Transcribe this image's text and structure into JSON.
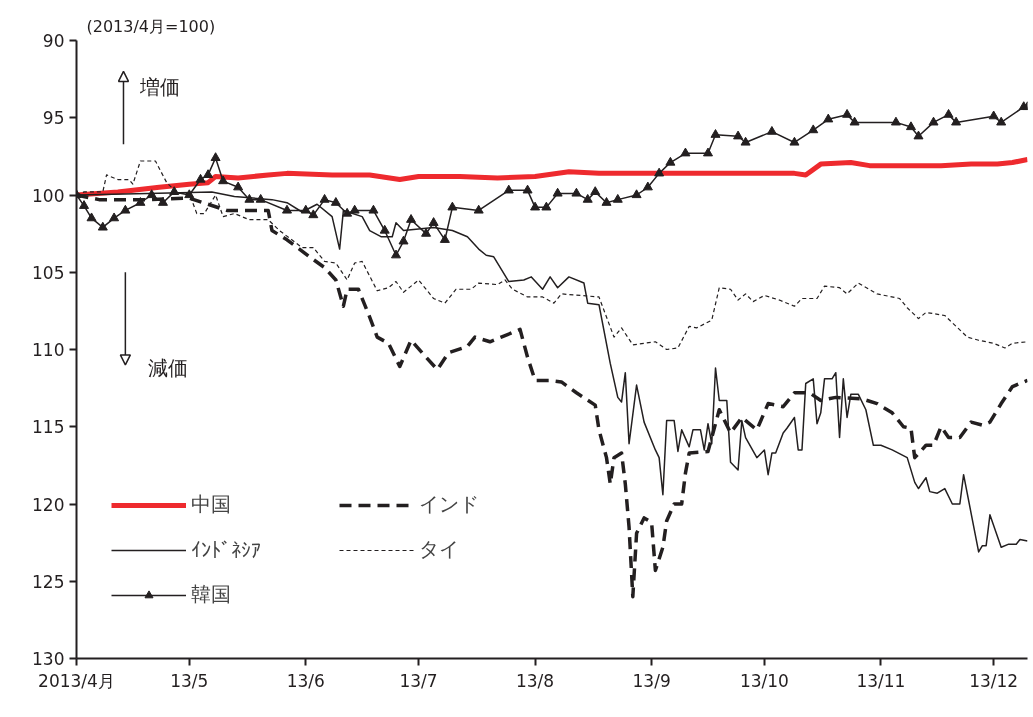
{
  "chart_data": {
    "type": "line",
    "annotations": [
      "(2013/4月=100)",
      "増価",
      "減価"
    ],
    "xlim": [
      "2013-04-01",
      "2013-12-10"
    ],
    "xticks": [
      {
        "value": "2013-04-01",
        "label": "2013/4月"
      },
      {
        "value": "2013-05-01",
        "label": "13/5"
      },
      {
        "value": "2013-06-01",
        "label": "13/6"
      },
      {
        "value": "2013-07-01",
        "label": "13/7"
      },
      {
        "value": "2013-08-01",
        "label": "13/8"
      },
      {
        "value": "2013-09-01",
        "label": "13/9"
      },
      {
        "value": "2013-10-01",
        "label": "13/10"
      },
      {
        "value": "2013-11-01",
        "label": "13/11"
      },
      {
        "value": "2013-12-01",
        "label": "13/12"
      }
    ],
    "ylim": [
      130,
      90
    ],
    "yticks": [
      90,
      95,
      100,
      105,
      110,
      115,
      120,
      125,
      130
    ],
    "grid": false,
    "legend": "bottom left",
    "series": [
      {
        "name": "中国",
        "color": "#ee2a2e",
        "line_style": "solid",
        "marker": "none",
        "x": [
          "2013-04-01",
          "2013-04-12",
          "2013-04-23",
          "2013-05-01",
          "2013-05-06",
          "2013-05-08",
          "2013-05-14",
          "2013-05-22",
          "2013-05-27",
          "2013-06-08",
          "2013-06-18",
          "2013-06-26",
          "2013-07-01",
          "2013-07-12",
          "2013-07-22",
          "2013-08-01",
          "2013-08-10",
          "2013-08-18",
          "2013-09-01",
          "2013-09-14",
          "2013-09-30",
          "2013-10-09",
          "2013-10-12",
          "2013-10-16",
          "2013-10-24",
          "2013-10-29",
          "2013-11-06",
          "2013-11-17",
          "2013-11-25",
          "2013-12-02",
          "2013-12-06",
          "2013-12-10"
        ],
        "values": [
          100.0,
          99.8,
          99.5,
          99.3,
          99.2,
          98.8,
          98.9,
          98.7,
          98.6,
          98.7,
          98.7,
          99.0,
          98.8,
          98.8,
          98.9,
          98.8,
          98.5,
          98.6,
          98.6,
          98.6,
          98.6,
          98.6,
          98.7,
          98.0,
          97.9,
          98.1,
          98.1,
          98.1,
          98.0,
          98.0,
          97.9,
          97.7
        ]
      },
      {
        "name": "インド",
        "color": "#231f20",
        "line_style": "dashed",
        "marker": "none",
        "x": [
          "2013-04-01",
          "2013-04-07",
          "2013-04-20",
          "2013-05-01",
          "2013-05-11",
          "2013-05-22",
          "2013-05-23",
          "2013-05-27",
          "2013-06-02",
          "2013-06-06",
          "2013-06-09",
          "2013-06-11",
          "2013-06-12",
          "2013-06-15",
          "2013-06-18",
          "2013-06-20",
          "2013-06-23",
          "2013-06-26",
          "2013-06-29",
          "2013-07-03",
          "2013-07-06",
          "2013-07-09",
          "2013-07-14",
          "2013-07-16",
          "2013-07-20",
          "2013-07-23",
          "2013-07-28",
          "2013-07-30",
          "2013-08-01",
          "2013-08-05",
          "2013-08-08",
          "2013-08-12",
          "2013-08-17",
          "2013-08-18",
          "2013-08-20",
          "2013-08-21",
          "2013-08-22",
          "2013-08-24",
          "2013-08-25",
          "2013-08-26",
          "2013-08-27",
          "2013-08-28",
          "2013-08-30",
          "2013-09-01",
          "2013-09-02",
          "2013-09-04",
          "2013-09-05",
          "2013-09-07",
          "2013-09-09",
          "2013-09-10",
          "2013-09-11",
          "2013-09-16",
          "2013-09-19",
          "2013-09-22",
          "2013-09-25",
          "2013-09-29",
          "2013-10-02",
          "2013-10-06",
          "2013-10-09",
          "2013-10-13",
          "2013-10-16",
          "2013-10-20",
          "2013-10-27",
          "2013-10-31",
          "2013-11-04",
          "2013-11-07",
          "2013-11-09",
          "2013-11-10",
          "2013-11-13",
          "2013-11-15",
          "2013-11-17",
          "2013-11-19",
          "2013-11-22",
          "2013-11-25",
          "2013-11-28",
          "2013-11-30",
          "2013-12-03",
          "2013-12-06",
          "2013-12-10"
        ],
        "values": [
          100.0,
          100.3,
          100.3,
          100.2,
          101.0,
          101.0,
          102.3,
          102.9,
          104.0,
          104.7,
          105.5,
          107.2,
          106.1,
          106.1,
          107.9,
          109.2,
          109.6,
          111.1,
          109.4,
          110.5,
          111.3,
          110.2,
          109.8,
          109.2,
          109.5,
          109.2,
          108.7,
          110.5,
          112.0,
          112.0,
          112.1,
          112.8,
          113.6,
          115.2,
          117.0,
          118.7,
          117.0,
          116.7,
          118.7,
          121.5,
          126.0,
          121.9,
          120.9,
          121.2,
          124.3,
          122.8,
          121.1,
          120.0,
          120.0,
          118.0,
          116.7,
          116.6,
          113.9,
          115.4,
          114.4,
          115.2,
          113.5,
          113.7,
          112.8,
          112.8,
          113.3,
          113.1,
          113.2,
          113.5,
          114.1,
          115.0,
          115.1,
          117.0,
          116.2,
          116.2,
          115.0,
          115.7,
          115.7,
          114.7,
          114.9,
          114.7,
          113.5,
          112.4,
          112.0
        ]
      },
      {
        "name": "ｲﾝﾄﾞﾈｼｱ",
        "color": "#231f20",
        "line_style": "solid",
        "marker": "none",
        "x": [
          "2013-04-01",
          "2013-04-20",
          "2013-05-07",
          "2013-05-13",
          "2013-05-23",
          "2013-05-27",
          "2013-05-31",
          "2013-06-04",
          "2013-06-08",
          "2013-06-10",
          "2013-06-11",
          "2013-06-16",
          "2013-06-18",
          "2013-06-21",
          "2013-06-24",
          "2013-06-25",
          "2013-06-27",
          "2013-07-05",
          "2013-07-10",
          "2013-07-14",
          "2013-07-17",
          "2013-07-19",
          "2013-07-21",
          "2013-07-25",
          "2013-07-29",
          "2013-07-31",
          "2013-08-03",
          "2013-08-05",
          "2013-08-07",
          "2013-08-10",
          "2013-08-14",
          "2013-08-15",
          "2013-08-18",
          "2013-08-21",
          "2013-08-23",
          "2013-08-24",
          "2013-08-25",
          "2013-08-26",
          "2013-08-28",
          "2013-08-30",
          "2013-09-02",
          "2013-09-03",
          "2013-09-04",
          "2013-09-05",
          "2013-09-07",
          "2013-09-08",
          "2013-09-09",
          "2013-09-11",
          "2013-09-12",
          "2013-09-14",
          "2013-09-15",
          "2013-09-16",
          "2013-09-17",
          "2013-09-18",
          "2013-09-19",
          "2013-09-21",
          "2013-09-22",
          "2013-09-24",
          "2013-09-25",
          "2013-09-26",
          "2013-09-29",
          "2013-10-01",
          "2013-10-02",
          "2013-10-03",
          "2013-10-04",
          "2013-10-06",
          "2013-10-07",
          "2013-10-09",
          "2013-10-10",
          "2013-10-11",
          "2013-10-12",
          "2013-10-14",
          "2013-10-15",
          "2013-10-16",
          "2013-10-17",
          "2013-10-19",
          "2013-10-20",
          "2013-10-21",
          "2013-10-22",
          "2013-10-23",
          "2013-10-24",
          "2013-10-26",
          "2013-10-28",
          "2013-10-30",
          "2013-11-01",
          "2013-11-04",
          "2013-11-08",
          "2013-11-10",
          "2013-11-11",
          "2013-11-13",
          "2013-11-14",
          "2013-11-16",
          "2013-11-18",
          "2013-11-20",
          "2013-11-22",
          "2013-11-23",
          "2013-11-25",
          "2013-11-27",
          "2013-11-28",
          "2013-11-29",
          "2013-11-30",
          "2013-12-03",
          "2013-12-05",
          "2013-12-07",
          "2013-12-08",
          "2013-12-10"
        ],
        "values": [
          100.0,
          99.9,
          99.8,
          100.1,
          100.3,
          100.5,
          101.1,
          100.6,
          101.4,
          103.5,
          101.0,
          101.4,
          102.3,
          102.7,
          102.7,
          101.8,
          102.3,
          102.1,
          102.3,
          102.7,
          103.5,
          103.9,
          104.0,
          105.6,
          105.5,
          105.3,
          106.1,
          105.3,
          106.0,
          105.3,
          105.7,
          107.0,
          107.1,
          110.9,
          113.1,
          113.4,
          111.5,
          116.1,
          112.3,
          114.7,
          116.5,
          117.0,
          119.4,
          114.6,
          114.6,
          116.6,
          115.2,
          116.3,
          115.2,
          115.2,
          116.5,
          114.8,
          116.1,
          111.2,
          113.3,
          113.3,
          117.3,
          117.8,
          114.6,
          115.7,
          117.0,
          116.5,
          118.1,
          116.7,
          116.7,
          115.4,
          115.1,
          114.4,
          116.5,
          116.5,
          112.2,
          111.9,
          114.8,
          114.1,
          111.9,
          111.9,
          111.5,
          115.7,
          111.9,
          114.4,
          112.9,
          112.9,
          113.9,
          116.2,
          116.2,
          116.5,
          117.0,
          118.6,
          119.0,
          118.3,
          119.2,
          119.3,
          119.0,
          120.0,
          120.0,
          118.1,
          120.6,
          123.1,
          122.7,
          122.7,
          120.7,
          122.8,
          122.6,
          122.6,
          122.3,
          122.4
        ]
      },
      {
        "name": "タイ",
        "color": "#231f20",
        "line_style": "dotted",
        "marker": "none",
        "x": [
          "2013-04-01",
          "2013-04-03",
          "2013-04-08",
          "2013-04-09",
          "2013-04-12",
          "2013-04-15",
          "2013-04-16",
          "2013-04-18",
          "2013-04-22",
          "2013-04-25",
          "2013-04-28",
          "2013-05-01",
          "2013-05-03",
          "2013-05-05",
          "2013-05-08",
          "2013-05-10",
          "2013-05-13",
          "2013-05-17",
          "2013-05-22",
          "2013-05-25",
          "2013-05-31",
          "2013-06-03",
          "2013-06-06",
          "2013-06-09",
          "2013-06-12",
          "2013-06-14",
          "2013-06-16",
          "2013-06-20",
          "2013-06-23",
          "2013-06-25",
          "2013-06-27",
          "2013-07-01",
          "2013-07-05",
          "2013-07-08",
          "2013-07-11",
          "2013-07-15",
          "2013-07-17",
          "2013-07-22",
          "2013-07-24",
          "2013-07-26",
          "2013-07-30",
          "2013-08-03",
          "2013-08-06",
          "2013-08-08",
          "2013-08-18",
          "2013-08-22",
          "2013-08-24",
          "2013-08-27",
          "2013-09-02",
          "2013-09-05",
          "2013-09-08",
          "2013-09-11",
          "2013-09-13",
          "2013-09-17",
          "2013-09-19",
          "2013-09-22",
          "2013-09-24",
          "2013-09-26",
          "2013-09-28",
          "2013-10-01",
          "2013-10-05",
          "2013-10-09",
          "2013-10-11",
          "2013-10-15",
          "2013-10-17",
          "2013-10-21",
          "2013-10-23",
          "2013-10-26",
          "2013-10-31",
          "2013-11-06",
          "2013-11-08",
          "2013-11-11",
          "2013-11-13",
          "2013-11-18",
          "2013-11-21",
          "2013-11-24",
          "2013-11-27",
          "2013-12-01",
          "2013-12-04",
          "2013-12-06",
          "2013-12-10"
        ],
        "values": [
          100.0,
          99.8,
          99.8,
          98.7,
          99.0,
          99.0,
          99.3,
          97.8,
          97.8,
          99.2,
          99.9,
          99.9,
          101.2,
          101.2,
          100.0,
          101.4,
          101.2,
          101.6,
          101.6,
          102.3,
          103.4,
          103.4,
          104.3,
          104.4,
          105.5,
          104.4,
          104.3,
          106.2,
          106.0,
          105.6,
          106.3,
          105.5,
          106.7,
          107.0,
          106.1,
          106.1,
          105.7,
          105.8,
          105.5,
          106.1,
          106.6,
          106.6,
          107.0,
          106.4,
          106.6,
          109.2,
          108.6,
          109.7,
          109.5,
          110.0,
          109.9,
          108.5,
          108.6,
          108.1,
          106.0,
          106.1,
          106.8,
          106.4,
          106.9,
          106.5,
          106.8,
          107.2,
          106.7,
          106.7,
          105.9,
          106.0,
          106.4,
          105.7,
          106.4,
          106.7,
          107.3,
          108.0,
          107.6,
          107.8,
          108.5,
          109.2,
          109.4,
          109.6,
          109.9,
          109.6,
          109.5
        ]
      },
      {
        "name": "韓国",
        "color": "#231f20",
        "line_style": "solid",
        "marker": "triangle",
        "x": [
          "2013-04-01",
          "2013-04-03",
          "2013-04-05",
          "2013-04-08",
          "2013-04-11",
          "2013-04-14",
          "2013-04-18",
          "2013-04-21",
          "2013-04-24",
          "2013-04-27",
          "2013-05-01",
          "2013-05-04",
          "2013-05-06",
          "2013-05-08",
          "2013-05-10",
          "2013-05-14",
          "2013-05-17",
          "2013-05-20",
          "2013-05-27",
          "2013-06-01",
          "2013-06-03",
          "2013-06-06",
          "2013-06-09",
          "2013-06-12",
          "2013-06-14",
          "2013-06-19",
          "2013-06-22",
          "2013-06-25",
          "2013-06-27",
          "2013-06-29",
          "2013-07-03",
          "2013-07-05",
          "2013-07-08",
          "2013-07-10",
          "2013-07-17",
          "2013-07-25",
          "2013-07-30",
          "2013-08-01",
          "2013-08-04",
          "2013-08-07",
          "2013-08-12",
          "2013-08-15",
          "2013-08-17",
          "2013-08-20",
          "2013-08-23",
          "2013-08-28",
          "2013-08-31",
          "2013-09-03",
          "2013-09-06",
          "2013-09-10",
          "2013-09-16",
          "2013-09-18",
          "2013-09-24",
          "2013-09-26",
          "2013-10-03",
          "2013-10-09",
          "2013-10-14",
          "2013-10-18",
          "2013-10-23",
          "2013-10-25",
          "2013-11-05",
          "2013-11-09",
          "2013-11-11",
          "2013-11-15",
          "2013-11-19",
          "2013-11-21",
          "2013-12-01",
          "2013-12-03",
          "2013-12-09",
          "2013-12-10"
        ],
        "values": [
          100.0,
          100.7,
          101.5,
          102.1,
          101.5,
          101.0,
          100.5,
          100.0,
          100.5,
          99.8,
          100.0,
          99.0,
          98.7,
          97.6,
          99.1,
          99.5,
          100.3,
          100.3,
          101.0,
          101.0,
          101.3,
          100.3,
          100.5,
          101.2,
          101.0,
          101.0,
          102.3,
          103.9,
          103.0,
          101.6,
          102.5,
          101.8,
          102.9,
          100.8,
          101.0,
          99.7,
          99.7,
          100.8,
          100.8,
          99.9,
          99.9,
          100.3,
          99.8,
          100.5,
          100.3,
          100.0,
          99.5,
          98.6,
          97.9,
          97.3,
          97.3,
          96.1,
          96.2,
          96.6,
          95.9,
          96.6,
          95.8,
          95.1,
          94.8,
          95.3,
          95.3,
          95.6,
          96.2,
          95.3,
          94.8,
          95.3,
          94.9,
          95.3,
          94.3,
          94.3
        ]
      }
    ]
  }
}
